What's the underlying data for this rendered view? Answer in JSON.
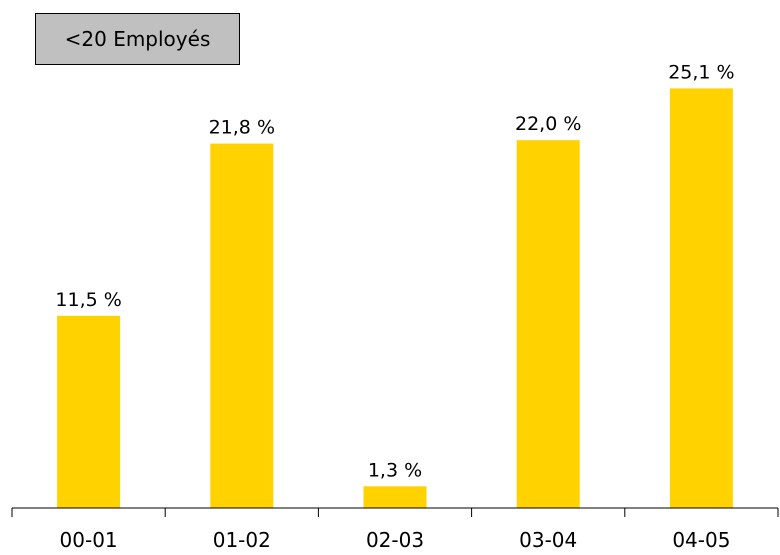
{
  "chart_data": {
    "type": "bar",
    "legend_label": "<20 Employés",
    "categories": [
      "00-01",
      "01-02",
      "02-03",
      "03-04",
      "04-05"
    ],
    "values": [
      11.5,
      21.8,
      1.3,
      22.0,
      25.1
    ],
    "data_labels": [
      "11,5 %",
      "21,8 %",
      "1,3 %",
      "22,0 %",
      "25,1 %"
    ],
    "unit": "%",
    "ylim": [
      0,
      26.5
    ],
    "grid": false,
    "colors": {
      "bar": "#FFD200",
      "axis": "#000000",
      "legend_bg": "#C0C0C0"
    }
  }
}
